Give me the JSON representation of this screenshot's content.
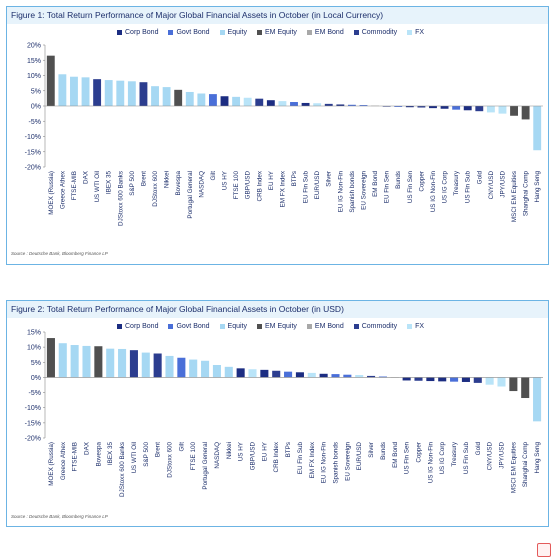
{
  "colors": {
    "corp_bond": "#1c2d82",
    "govt_bond": "#4a6fd8",
    "equity": "#a6d8f3",
    "em_equity": "#505050",
    "em_bond": "#a8a8a8",
    "commodity": "#2c3d8f",
    "fx": "#b9e4f8",
    "frame": "#6cb4e4",
    "title_bg": "#e7f3fb",
    "title_text": "#1d2f6b"
  },
  "chart_data": [
    {
      "type": "bar",
      "title": "Figure 1: Total Return Performance of Major Global Financial Assets in October (in Local Currency)",
      "legend": [
        {
          "key": "corp_bond",
          "label": "Corp Bond"
        },
        {
          "key": "govt_bond",
          "label": "Govt Bond"
        },
        {
          "key": "equity",
          "label": "Equity"
        },
        {
          "key": "em_equity",
          "label": "EM Equity"
        },
        {
          "key": "em_bond",
          "label": "EM Bond"
        },
        {
          "key": "commodity",
          "label": "Commodity"
        },
        {
          "key": "fx",
          "label": "FX"
        }
      ],
      "ylim": [
        -20,
        20
      ],
      "yticks": [
        20,
        15,
        10,
        5,
        0,
        -5,
        -10,
        -15,
        -20
      ],
      "grid": false,
      "categories": [
        "MOEX (Russia)",
        "Greece Athex",
        "FTSE-MIB",
        "DAX",
        "US WTI Oil",
        "IBEX 35",
        "DJStoxx 600 Banks",
        "S&P 500",
        "Brent",
        "DJStoxx 600",
        "Nikkei",
        "Bovespa",
        "Portugal General",
        "NASDAQ",
        "Gilt",
        "US HY",
        "FTSE 100",
        "GBP/USD",
        "CRB Index",
        "EU HY",
        "EM FX Index",
        "BTPs",
        "EU Fin Sub",
        "EUR/USD",
        "Silver",
        "EU IG Non-Fin",
        "Spanish bonds",
        "EU Sovereign",
        "EM Bond",
        "EU Fin Sen",
        "Bunds",
        "US Fin Sen",
        "Copper",
        "US IG Non-Fin",
        "US IG Corp",
        "Treasury",
        "US Fin Sub",
        "Gold",
        "CNY/USD",
        "JPY/USD",
        "MSCI EM Equities",
        "Shanghai Comp",
        "Hang Seng"
      ],
      "asset_class": [
        "em_equity",
        "equity",
        "equity",
        "equity",
        "commodity",
        "equity",
        "equity",
        "equity",
        "commodity",
        "equity",
        "equity",
        "em_equity",
        "equity",
        "equity",
        "govt_bond",
        "corp_bond",
        "equity",
        "fx",
        "commodity",
        "corp_bond",
        "fx",
        "govt_bond",
        "corp_bond",
        "fx",
        "commodity",
        "corp_bond",
        "govt_bond",
        "govt_bond",
        "em_bond",
        "corp_bond",
        "govt_bond",
        "corp_bond",
        "commodity",
        "corp_bond",
        "corp_bond",
        "govt_bond",
        "corp_bond",
        "commodity",
        "fx",
        "fx",
        "em_equity",
        "em_equity",
        "equity"
      ],
      "values": [
        16.5,
        10.4,
        9.6,
        9.4,
        8.8,
        8.5,
        8.3,
        8.1,
        7.8,
        6.5,
        6.2,
        5.3,
        4.6,
        4.1,
        3.9,
        3.2,
        3.0,
        2.7,
        2.4,
        1.9,
        1.6,
        1.3,
        1.0,
        0.9,
        0.7,
        0.5,
        0.4,
        0.3,
        0.1,
        -0.2,
        -0.3,
        -0.4,
        -0.5,
        -0.7,
        -0.9,
        -1.2,
        -1.4,
        -1.7,
        -2.1,
        -2.5,
        -3.2,
        -4.4,
        -14.5
      ],
      "source": "Source : Deutsche Bank, Bloomberg Finance LP"
    },
    {
      "type": "bar",
      "title": "Figure 2: Total Return Performance of Major Global Financial Assets in October (in USD)",
      "legend": [
        {
          "key": "corp_bond",
          "label": "Corp Bond"
        },
        {
          "key": "govt_bond",
          "label": "Govt Bond"
        },
        {
          "key": "equity",
          "label": "Equity"
        },
        {
          "key": "em_equity",
          "label": "EM Equity"
        },
        {
          "key": "em_bond",
          "label": "EM Bond"
        },
        {
          "key": "commodity",
          "label": "Commodity"
        },
        {
          "key": "fx",
          "label": "FX"
        }
      ],
      "ylim": [
        -20,
        15
      ],
      "yticks": [
        15,
        10,
        5,
        0,
        -5,
        -10,
        -15,
        -20
      ],
      "grid": false,
      "categories": [
        "MOEX (Russia)",
        "Greece Athex",
        "FTSE-MIB",
        "DAX",
        "Bovespa",
        "IBEX 35",
        "DJStoxx 600 Banks",
        "US WTI Oil",
        "S&P 500",
        "Brent",
        "DJStoxx 600",
        "Gilt",
        "FTSE 100",
        "Portugal General",
        "NASDAQ",
        "Nikkei",
        "US HY",
        "GBP/USD",
        "EU HY",
        "CRB Index",
        "BTPs",
        "EU Fin Sub",
        "EM FX Index",
        "EU IG Non-Fin",
        "Spanish bonds",
        "EU Sovereign",
        "EUR/USD",
        "Silver",
        "Bunds",
        "EM Bond",
        "US Fin Sen",
        "Copper",
        "US IG Non-Fin",
        "US IG Corp",
        "Treasury",
        "US Fin Sub",
        "Gold",
        "CNY/USD",
        "JPY/USD",
        "MSCI EM Equities",
        "Shanghai Comp",
        "Hang Seng"
      ],
      "asset_class": [
        "em_equity",
        "equity",
        "equity",
        "equity",
        "em_equity",
        "equity",
        "equity",
        "commodity",
        "equity",
        "commodity",
        "equity",
        "govt_bond",
        "equity",
        "equity",
        "equity",
        "equity",
        "corp_bond",
        "fx",
        "corp_bond",
        "commodity",
        "govt_bond",
        "corp_bond",
        "fx",
        "corp_bond",
        "govt_bond",
        "govt_bond",
        "fx",
        "commodity",
        "govt_bond",
        "em_bond",
        "corp_bond",
        "commodity",
        "corp_bond",
        "corp_bond",
        "govt_bond",
        "corp_bond",
        "commodity",
        "fx",
        "fx",
        "em_equity",
        "em_equity",
        "equity"
      ],
      "values": [
        13.0,
        11.3,
        10.7,
        10.4,
        10.3,
        9.5,
        9.4,
        9.0,
        8.2,
        7.9,
        7.1,
        6.5,
        5.9,
        5.5,
        4.1,
        3.5,
        3.0,
        2.7,
        2.5,
        2.2,
        1.9,
        1.7,
        1.5,
        1.2,
        1.1,
        0.9,
        0.8,
        0.5,
        0.3,
        0.1,
        -1.0,
        -1.1,
        -1.2,
        -1.3,
        -1.4,
        -1.5,
        -1.8,
        -2.4,
        -3.0,
        -4.5,
        -6.8,
        -14.5
      ],
      "source": "Source : Deutsche Bank, Bloomberg Finance LP"
    }
  ]
}
